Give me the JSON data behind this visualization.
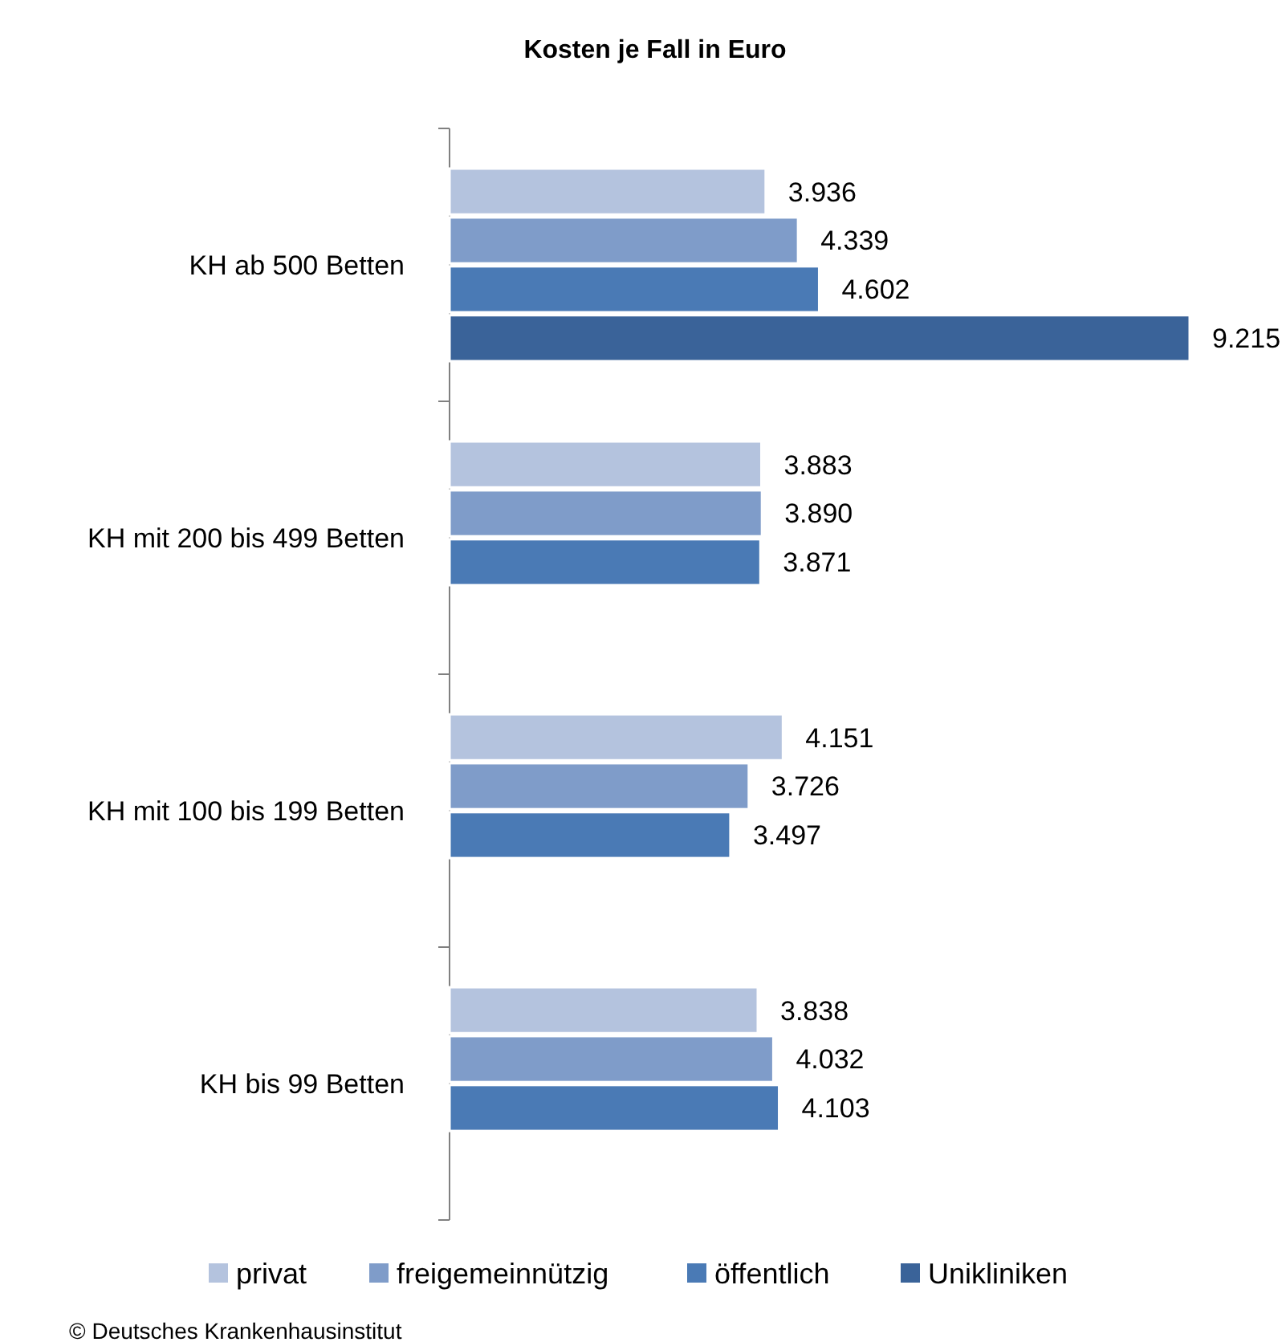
{
  "chart_data": {
    "type": "bar",
    "orientation": "horizontal",
    "title": "Kosten je Fall in Euro",
    "categories": [
      "KH ab 500 Betten",
      "KH mit 200 bis 499 Betten",
      "KH mit 100 bis 199 Betten",
      "KH bis 99 Betten"
    ],
    "series": [
      {
        "name": "privat",
        "color": "#b4c3de",
        "values": [
          3936,
          3883,
          4151,
          3838
        ],
        "value_labels": [
          "3.936",
          "3.883",
          "4.151",
          "3.838"
        ]
      },
      {
        "name": "freigemeinnützig",
        "color": "#7f9cc9",
        "values": [
          4339,
          3890,
          3726,
          4032
        ],
        "value_labels": [
          "4.339",
          "3.890",
          "3.726",
          "4.032"
        ]
      },
      {
        "name": "öffentlich",
        "color": "#4a7ab5",
        "values": [
          4602,
          3871,
          3497,
          4103
        ],
        "value_labels": [
          "4.602",
          "3.871",
          "3.497",
          "4.103"
        ]
      },
      {
        "name": "Unikliniken",
        "color": "#3a6399",
        "values": [
          9215,
          null,
          null,
          null
        ],
        "value_labels": [
          "9.215",
          null,
          null,
          null
        ]
      }
    ],
    "legend": "bottom",
    "tick_labels": "y",
    "annotations": [
      "© Deutsches Krankenhausinstitut"
    ]
  }
}
